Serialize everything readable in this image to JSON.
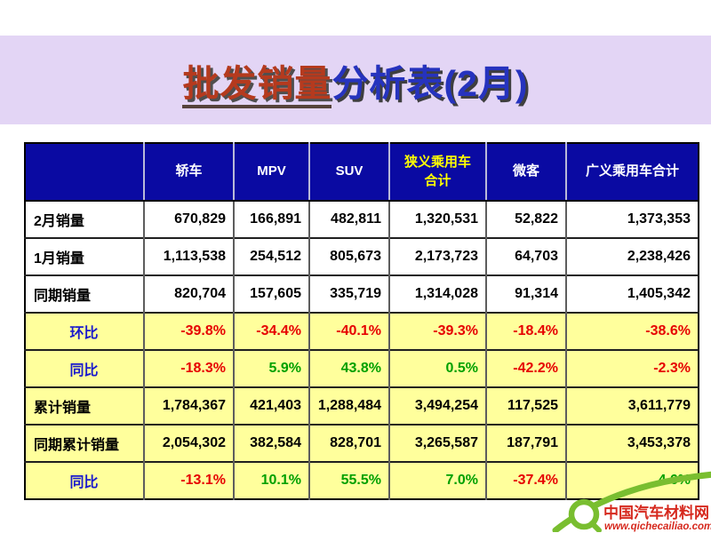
{
  "title": {
    "highlight": "批发销量",
    "rest": "分析表(2月)"
  },
  "table": {
    "columns": [
      "",
      "轿车",
      "MPV",
      "SUV",
      "狭义乘用车\n合计",
      "微客",
      "广义乘用车合计"
    ],
    "highlight_column_index": 4,
    "rows": [
      {
        "label": "2月销量",
        "style": "data",
        "bg": "white",
        "last_gray": true,
        "values": [
          "670,829",
          "166,891",
          "482,811",
          "1,320,531",
          "52,822",
          "1,373,353"
        ]
      },
      {
        "label": "1月销量",
        "style": "data",
        "bg": "white",
        "last_gray": true,
        "values": [
          "1,113,538",
          "254,512",
          "805,673",
          "2,173,723",
          "64,703",
          "2,238,426"
        ]
      },
      {
        "label": "同期销量",
        "style": "data",
        "bg": "white",
        "last_gray": true,
        "values": [
          "820,704",
          "157,605",
          "335,719",
          "1,314,028",
          "91,314",
          "1,405,342"
        ]
      },
      {
        "label": "环比",
        "style": "ratio",
        "bg": "yellow",
        "values": [
          "-39.8%",
          "-34.4%",
          "-40.1%",
          "-39.3%",
          "-18.4%",
          "-38.6%"
        ],
        "colors": [
          "red",
          "red",
          "red",
          "red",
          "red",
          "red"
        ]
      },
      {
        "label": "同比",
        "style": "ratio",
        "bg": "yellow",
        "values": [
          "-18.3%",
          "5.9%",
          "43.8%",
          "0.5%",
          "-42.2%",
          "-2.3%"
        ],
        "colors": [
          "red",
          "green",
          "green",
          "green",
          "red",
          "red"
        ]
      },
      {
        "label": "累计销量",
        "style": "data",
        "bg": "yellow",
        "values": [
          "1,784,367",
          "421,403",
          "1,288,484",
          "3,494,254",
          "117,525",
          "3,611,779"
        ]
      },
      {
        "label": "同期累计销量",
        "style": "data",
        "bg": "yellow",
        "values": [
          "2,054,302",
          "382,584",
          "828,701",
          "3,265,587",
          "187,791",
          "3,453,378"
        ]
      },
      {
        "label": "同比",
        "style": "ratio",
        "bg": "yellow",
        "values": [
          "-13.1%",
          "10.1%",
          "55.5%",
          "7.0%",
          "-37.4%",
          "4.6%"
        ],
        "colors": [
          "red",
          "green",
          "green",
          "green",
          "red",
          "green"
        ]
      }
    ]
  },
  "watermark": {
    "name": "中国汽车材料网",
    "url": "www.qichecailiao.com"
  },
  "colors": {
    "lavender": "#e3d5f5",
    "header-blue": "#0a0aa2",
    "header-text": "#ffffff",
    "header-highlight": "#ffff00",
    "yellow": "#ffff9c",
    "gray": "#d8d8d8",
    "red": "#e60000",
    "green": "#00a000",
    "label-blue": "#1a1acc",
    "title-red": "#b53a1e",
    "title-blue": "#2633be",
    "logo-green": "#79be30",
    "logo-red": "#d6291e"
  }
}
